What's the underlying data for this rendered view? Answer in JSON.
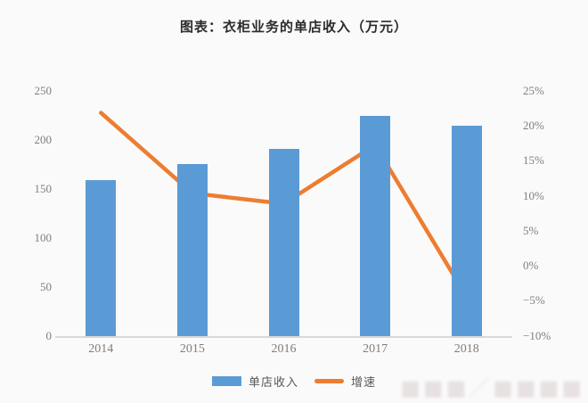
{
  "title": "图表：衣柜业务的单店收入（万元）",
  "chart_data": {
    "type": "combo",
    "title": "图表：衣柜业务的单店收入（万元）",
    "categories": [
      "2014",
      "2015",
      "2016",
      "2017",
      "2018"
    ],
    "series": [
      {
        "name": "单店收入",
        "type": "bar",
        "axis": "left",
        "values": [
          160,
          176,
          192,
          225,
          215
        ],
        "color": "#5B9BD5"
      },
      {
        "name": "增速",
        "type": "line",
        "axis": "right",
        "values_pct": [
          22,
          10.5,
          9,
          17.4,
          -4.3
        ],
        "color": "#ED7D31"
      }
    ],
    "left_axis": {
      "ticks": [
        0,
        50,
        100,
        150,
        200,
        250
      ],
      "range": [
        0,
        250
      ]
    },
    "right_axis": {
      "ticks_pct": [
        -10,
        -5,
        0,
        5,
        10,
        15,
        20,
        25
      ],
      "tick_suffix": "%",
      "range_pct": [
        -10,
        25
      ]
    },
    "grid": false,
    "legend_position": "bottom"
  },
  "legend": {
    "bar_label": "单店收入",
    "line_label": "增速"
  },
  "watermark": "■■■／■■■■",
  "colors": {
    "background": "#fbfafa",
    "bar": "#5B9BD5",
    "line": "#ED7D31",
    "axis": "#d9d9d9",
    "tick_text": "#7e7e7e"
  }
}
